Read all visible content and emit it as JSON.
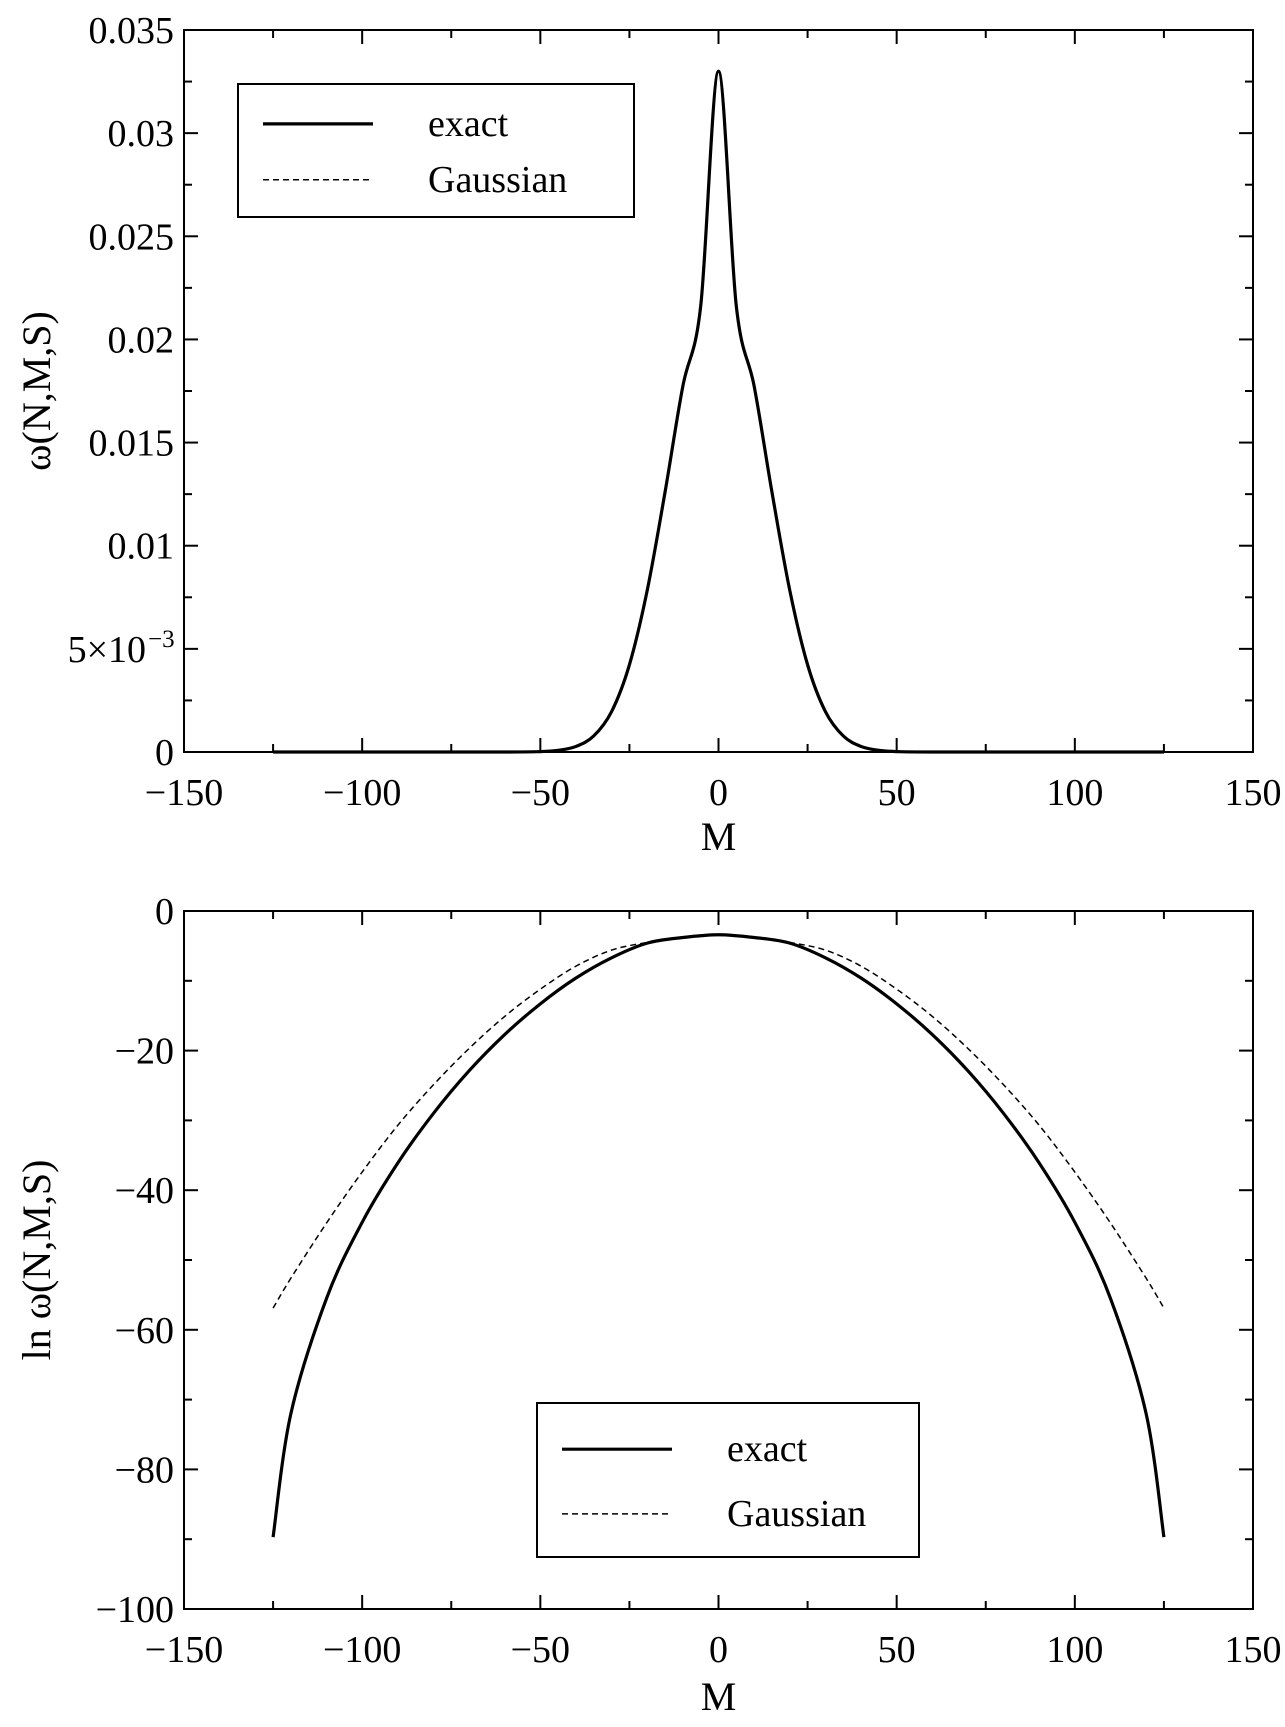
{
  "chart_data": [
    {
      "type": "line",
      "xlabel": "M",
      "ylabel": "ω(N,M,S)",
      "xlim": [
        -150,
        150
      ],
      "ylim": [
        0,
        0.035
      ],
      "x_ticks": [
        -150,
        -100,
        -50,
        0,
        50,
        100,
        150
      ],
      "x_tick_labels": [
        "−150",
        "−100",
        "−50",
        "0",
        "50",
        "100",
        "150"
      ],
      "y_ticks": [
        0,
        0.005,
        0.01,
        0.015,
        0.02,
        0.025,
        0.03,
        0.035
      ],
      "y_tick_labels": [
        "0",
        "5×10",
        "0.01",
        "0.015",
        "0.02",
        "0.025",
        "0.03",
        "0.035"
      ],
      "y_tick_exponent": {
        "index": 1,
        "text": "−3"
      },
      "grid": false,
      "legend_position": "top-left",
      "series": [
        {
          "name": "exact",
          "style": "solid",
          "x": [
            -125,
            -100,
            -60,
            -50,
            -45,
            -40,
            -35,
            -30,
            -25,
            -20,
            -15,
            -10,
            -5,
            0,
            5,
            10,
            15,
            20,
            25,
            30,
            35,
            40,
            45,
            50,
            60,
            100,
            125
          ],
          "y": [
            0,
            0,
            1e-06,
            2e-05,
            8e-05,
            0.00027,
            0.00078,
            0.00196,
            0.00423,
            0.00784,
            0.0126,
            0.01774,
            0.02161,
            0.033,
            0.02161,
            0.01774,
            0.0126,
            0.00784,
            0.00423,
            0.00196,
            0.00078,
            0.00027,
            8e-05,
            2e-05,
            1e-06,
            0,
            0
          ]
        },
        {
          "name": "Gaussian",
          "style": "dashed",
          "x": [
            -125,
            -100,
            -60,
            -50,
            -45,
            -40,
            -35,
            -30,
            -25,
            -20,
            -15,
            -10,
            -5,
            0,
            5,
            10,
            15,
            20,
            25,
            30,
            35,
            40,
            45,
            50,
            60,
            100,
            125
          ],
          "y": [
            0,
            0,
            1e-06,
            2e-05,
            8e-05,
            0.00028,
            0.0008,
            0.00198,
            0.00426,
            0.00787,
            0.01262,
            0.01775,
            0.02161,
            0.033,
            0.02161,
            0.01775,
            0.01262,
            0.00787,
            0.00426,
            0.00198,
            0.0008,
            0.00028,
            8e-05,
            2e-05,
            1e-06,
            0,
            0
          ]
        }
      ]
    },
    {
      "type": "line",
      "xlabel": "M",
      "ylabel": "ln ω(N,M,S)",
      "xlim": [
        -150,
        150
      ],
      "ylim": [
        -100,
        0
      ],
      "x_ticks": [
        -150,
        -100,
        -50,
        0,
        50,
        100,
        150
      ],
      "x_tick_labels": [
        "−150",
        "−100",
        "−50",
        "0",
        "50",
        "100",
        "150"
      ],
      "y_ticks": [
        -100,
        -80,
        -60,
        -40,
        -20,
        0
      ],
      "y_tick_labels": [
        "−100",
        "−80",
        "−60",
        "−40",
        "−20",
        "0"
      ],
      "grid": false,
      "legend_position": "bottom-center",
      "series": [
        {
          "name": "exact",
          "style": "solid",
          "x": [
            -125,
            -120,
            -110,
            -100,
            -90,
            -80,
            -70,
            -60,
            -50,
            -40,
            -30,
            -20,
            -10,
            0,
            10,
            20,
            30,
            40,
            50,
            60,
            70,
            80,
            90,
            100,
            110,
            120,
            125
          ],
          "y": [
            -89.7,
            -72.0,
            -55.5,
            -44.6,
            -36.1,
            -29.0,
            -22.9,
            -17.7,
            -13.3,
            -9.6,
            -6.7,
            -4.6,
            -3.8,
            -3.4,
            -3.8,
            -4.6,
            -6.7,
            -9.6,
            -13.3,
            -17.7,
            -22.9,
            -29.0,
            -36.1,
            -44.6,
            -55.5,
            -72.0,
            -89.7
          ]
        },
        {
          "name": "Gaussian",
          "style": "dashed",
          "x": [
            -125,
            -120,
            -110,
            -100,
            -90,
            -80,
            -70,
            -60,
            -50,
            -40,
            -30,
            -20,
            -10,
            0,
            10,
            20,
            30,
            40,
            50,
            60,
            70,
            80,
            90,
            100,
            110,
            120,
            125
          ],
          "y": [
            -56.9,
            -52.6,
            -44.7,
            -37.4,
            -30.7,
            -24.9,
            -19.7,
            -15.1,
            -11.2,
            -7.9,
            -5.6,
            -4.5,
            -3.7,
            -3.4,
            -3.7,
            -4.5,
            -5.6,
            -7.9,
            -11.2,
            -15.1,
            -19.7,
            -24.9,
            -30.7,
            -37.4,
            -44.7,
            -52.6,
            -56.9
          ]
        }
      ]
    }
  ]
}
